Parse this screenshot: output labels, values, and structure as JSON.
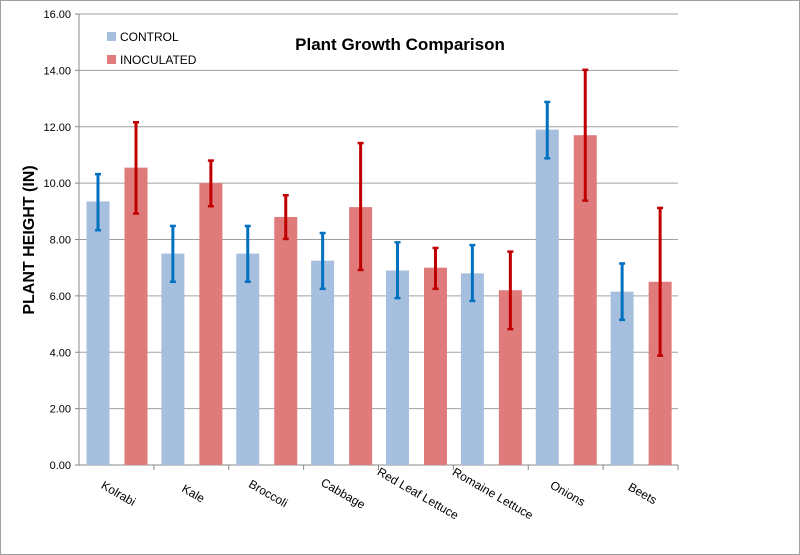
{
  "chart_data": {
    "type": "bar",
    "title": "Plant Growth Comparison",
    "xlabel": "",
    "ylabel": "PLANT HEIGHT (IN)",
    "ylim": [
      0,
      16
    ],
    "yticks": [
      "0.00",
      "2.00",
      "4.00",
      "6.00",
      "8.00",
      "10.00",
      "12.00",
      "14.00",
      "16.00"
    ],
    "grid": true,
    "legend": "top-left",
    "categories": [
      "Kolrabi",
      "Kale",
      "Broccoli",
      "Cabbage",
      "Red Leaf Lettuce",
      "Romaine Lettuce",
      "Onions",
      "Beets"
    ],
    "series": [
      {
        "name": "CONTROL",
        "color": "#a7bfde",
        "error_color": "#0070c0",
        "values": [
          9.35,
          7.5,
          7.5,
          7.25,
          6.9,
          6.8,
          11.9,
          6.15
        ],
        "error_high": [
          10.32,
          8.48,
          8.48,
          8.23,
          7.9,
          7.8,
          12.88,
          7.15
        ],
        "error_low": [
          8.33,
          6.5,
          6.5,
          6.25,
          5.92,
          5.82,
          10.88,
          5.15
        ]
      },
      {
        "name": "INOCULATED",
        "color": "#e07b7b",
        "error_color": "#c00000",
        "values": [
          10.55,
          10.0,
          8.8,
          9.15,
          7.0,
          6.2,
          11.7,
          6.5
        ],
        "error_high": [
          12.16,
          10.8,
          9.57,
          11.42,
          7.7,
          7.57,
          14.02,
          9.12
        ],
        "error_low": [
          8.92,
          9.18,
          8.02,
          6.92,
          6.25,
          4.82,
          9.38,
          3.88
        ]
      }
    ]
  }
}
